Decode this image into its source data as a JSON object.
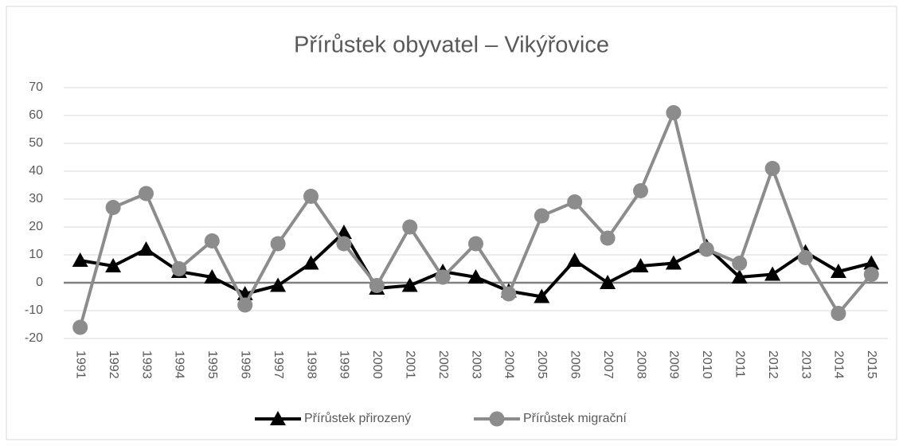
{
  "chart_data": {
    "type": "line",
    "title": "Přírůstek obyvatel – Vikýřovice",
    "categories": [
      "1991",
      "1992",
      "1993",
      "1994",
      "1995",
      "1996",
      "1997",
      "1998",
      "1999",
      "2000",
      "2001",
      "2002",
      "2003",
      "2004",
      "2005",
      "2006",
      "2007",
      "2008",
      "2009",
      "2010",
      "2011",
      "2012",
      "2013",
      "2014",
      "2015"
    ],
    "series": [
      {
        "name": "Přírůstek přirozený",
        "color": "#000000",
        "marker": "triangle",
        "values": [
          8,
          6,
          12,
          4,
          2,
          -4,
          -1,
          7,
          18,
          -2,
          -1,
          4,
          2,
          -3,
          -5,
          8,
          0,
          6,
          7,
          13,
          2,
          3,
          11,
          4,
          7
        ]
      },
      {
        "name": "Přírůstek migrační",
        "color": "#8c8c8c",
        "marker": "circle",
        "values": [
          -16,
          27,
          32,
          5,
          15,
          -8,
          14,
          31,
          14,
          -1,
          20,
          2,
          14,
          -4,
          24,
          29,
          16,
          33,
          61,
          12,
          7,
          41,
          9,
          -11,
          3
        ]
      }
    ],
    "ylim": [
      -20,
      70
    ],
    "yticks": [
      -20,
      -10,
      0,
      10,
      20,
      30,
      40,
      50,
      60,
      70
    ],
    "grid": true,
    "legend": "bottom"
  }
}
